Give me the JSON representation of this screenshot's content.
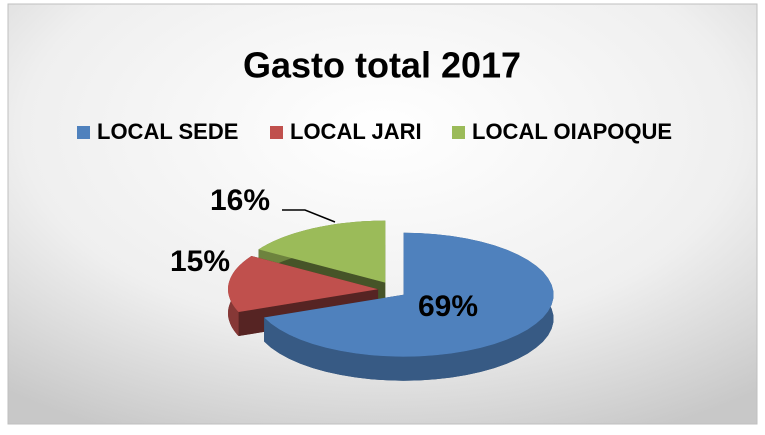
{
  "chart_data": {
    "type": "pie",
    "title": "Gasto total 2017",
    "categories": [
      "LOCAL SEDE",
      "LOCAL JARI",
      "LOCAL OIAPOQUE"
    ],
    "values": [
      69,
      15,
      16
    ],
    "value_labels": [
      "69%",
      "15%",
      "16%"
    ],
    "colors": [
      "#4f81bd",
      "#c0504d",
      "#9bbb59"
    ],
    "legend": "top"
  }
}
